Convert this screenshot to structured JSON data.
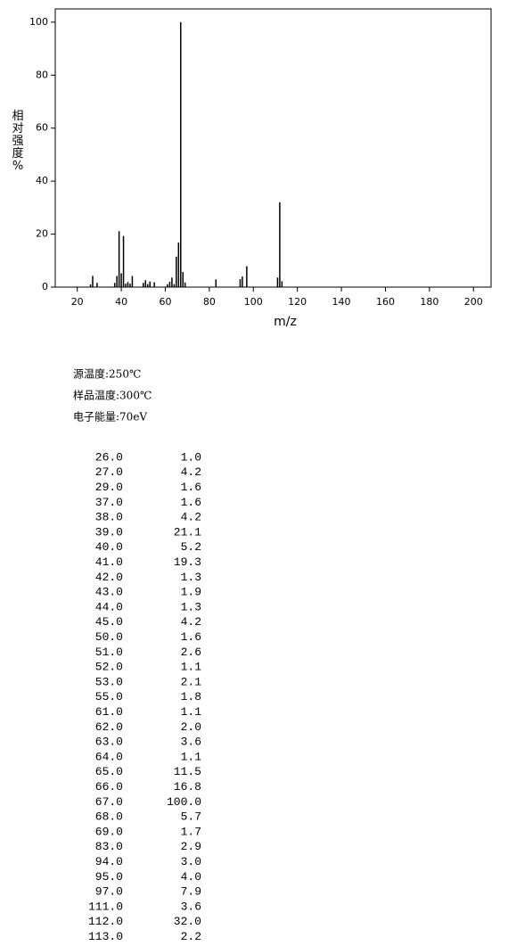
{
  "chart_data": {
    "type": "spectrum",
    "xlabel": "m/z",
    "ylabel": "相对强度%",
    "color": "#000000",
    "x": [
      26,
      27,
      29,
      37,
      38,
      39,
      40,
      41,
      42,
      43,
      44,
      45,
      50,
      51,
      52,
      53,
      55,
      61,
      62,
      63,
      64,
      65,
      66,
      67,
      68,
      69,
      83,
      94,
      95,
      97,
      111,
      112,
      113
    ],
    "values": [
      1.0,
      4.2,
      1.6,
      1.6,
      4.2,
      21.1,
      5.2,
      19.3,
      1.3,
      1.9,
      1.3,
      4.2,
      1.6,
      2.6,
      1.1,
      2.1,
      1.8,
      1.1,
      2.0,
      3.6,
      1.1,
      11.5,
      16.8,
      100.0,
      5.7,
      1.7,
      2.9,
      3.0,
      4.0,
      7.9,
      3.6,
      32.0,
      2.2
    ],
    "xlim": [
      10,
      208
    ],
    "ylim": [
      0,
      105
    ],
    "xticks": [
      20,
      40,
      60,
      80,
      100,
      120,
      140,
      160,
      180,
      200
    ],
    "yticks": [
      0,
      20,
      40,
      60,
      80,
      100
    ]
  },
  "conditions": [
    "源温度:250℃",
    "样品温度:300℃",
    "电子能量:70eV"
  ],
  "table": {
    "rows": [
      [
        "26.0",
        "1.0"
      ],
      [
        "27.0",
        "4.2"
      ],
      [
        "29.0",
        "1.6"
      ],
      [
        "37.0",
        "1.6"
      ],
      [
        "38.0",
        "4.2"
      ],
      [
        "39.0",
        "21.1"
      ],
      [
        "40.0",
        "5.2"
      ],
      [
        "41.0",
        "19.3"
      ],
      [
        "42.0",
        "1.3"
      ],
      [
        "43.0",
        "1.9"
      ],
      [
        "44.0",
        "1.3"
      ],
      [
        "45.0",
        "4.2"
      ],
      [
        "50.0",
        "1.6"
      ],
      [
        "51.0",
        "2.6"
      ],
      [
        "52.0",
        "1.1"
      ],
      [
        "53.0",
        "2.1"
      ],
      [
        "55.0",
        "1.8"
      ],
      [
        "61.0",
        "1.1"
      ],
      [
        "62.0",
        "2.0"
      ],
      [
        "63.0",
        "3.6"
      ],
      [
        "64.0",
        "1.1"
      ],
      [
        "65.0",
        "11.5"
      ],
      [
        "66.0",
        "16.8"
      ],
      [
        "67.0",
        "100.0"
      ],
      [
        "68.0",
        "5.7"
      ],
      [
        "69.0",
        "1.7"
      ],
      [
        "83.0",
        "2.9"
      ],
      [
        "94.0",
        "3.0"
      ],
      [
        "95.0",
        "4.0"
      ],
      [
        "97.0",
        "7.9"
      ],
      [
        "111.0",
        "3.6"
      ],
      [
        "112.0",
        "32.0"
      ],
      [
        "113.0",
        "2.2"
      ]
    ]
  }
}
